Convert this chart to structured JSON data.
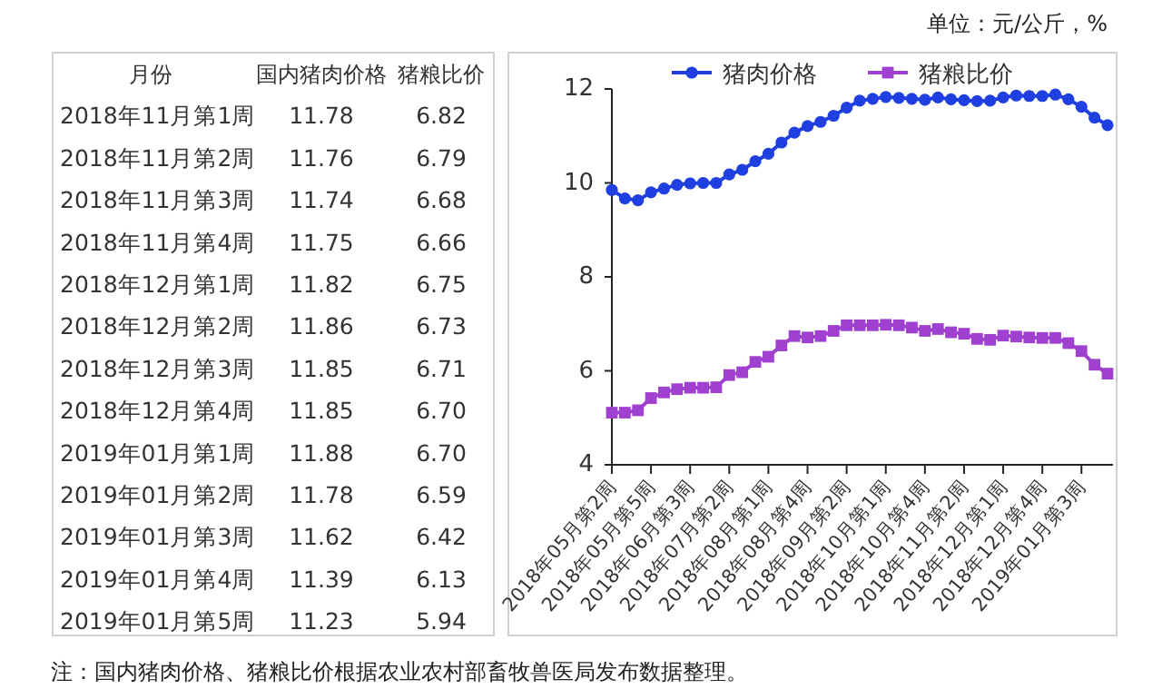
{
  "chart_data": [
    {
      "type": "other",
      "xlabel": "月份",
      "categories": [
        "2018年11月第1周",
        "2018年11月第2周",
        "2018年11月第3周",
        "2018年11月第4周",
        "2018年12月第1周",
        "2018年12月第2周",
        "2018年12月第3周",
        "2018年12月第4周",
        "2019年01月第1周",
        "2019年01月第2周",
        "2019年01月第3周",
        "2019年01月第4周",
        "2019年01月第5周"
      ],
      "series": [
        {
          "name": "国内猪肉价格",
          "values": [
            11.78,
            11.76,
            11.74,
            11.75,
            11.82,
            11.86,
            11.85,
            11.85,
            11.88,
            11.78,
            11.62,
            11.39,
            11.23
          ],
          "value_labels": [
            "11.78",
            "11.76",
            "11.74",
            "11.75",
            "11.82",
            "11.86",
            "11.85",
            "11.85",
            "11.88",
            "11.78",
            "11.62",
            "11.39",
            "11.23"
          ]
        },
        {
          "name": "猪粮比价",
          "values": [
            6.82,
            6.79,
            6.68,
            6.66,
            6.75,
            6.73,
            6.71,
            6.7,
            6.7,
            6.59,
            6.42,
            6.13,
            5.94
          ],
          "value_labels": [
            "6.82",
            "6.79",
            "6.68",
            "6.66",
            "6.75",
            "6.73",
            "6.71",
            "6.70",
            "6.70",
            "6.59",
            "6.42",
            "6.13",
            "5.94"
          ]
        }
      ],
      "annotations": [
        "注：国内猪肉价格、猪粮比价根据农业农村部畜牧兽医局发布数据整理。"
      ]
    },
    {
      "type": "line",
      "annotations": [
        "单位：元/公斤，%"
      ],
      "categories": [
        "2018年05月第2周",
        null,
        null,
        "2018年05月第5周",
        null,
        null,
        "2018年06月第3周",
        null,
        null,
        "2018年07月第2周",
        null,
        null,
        "2018年08月第1周",
        null,
        null,
        "2018年08月第4周",
        null,
        null,
        "2018年09月第2周",
        null,
        null,
        "2018年10月第1周",
        null,
        null,
        "2018年10月第4周",
        null,
        null,
        "2018年11月第2周",
        null,
        null,
        "2018年12月第1周",
        null,
        null,
        "2018年12月第4周",
        null,
        null,
        "2019年01月第3周",
        null,
        null
      ],
      "series": [
        {
          "name": "猪肉价格",
          "color": "#1f3fe0",
          "marker": "circle",
          "values": [
            9.85,
            9.67,
            9.63,
            9.8,
            9.88,
            9.96,
            9.99,
            10.0,
            10.0,
            10.18,
            10.28,
            10.46,
            10.62,
            10.86,
            11.07,
            11.21,
            11.3,
            11.43,
            11.6,
            11.75,
            11.79,
            11.83,
            11.81,
            11.79,
            11.77,
            11.82,
            11.78,
            11.76,
            11.74,
            11.75,
            11.82,
            11.86,
            11.85,
            11.85,
            11.88,
            11.78,
            11.62,
            11.39,
            11.23
          ]
        },
        {
          "name": "猪粮比价",
          "color": "#a040d0",
          "marker": "square",
          "values": [
            5.11,
            5.11,
            5.16,
            5.42,
            5.54,
            5.61,
            5.64,
            5.64,
            5.65,
            5.91,
            5.97,
            6.19,
            6.3,
            6.54,
            6.74,
            6.71,
            6.74,
            6.85,
            6.97,
            6.97,
            6.97,
            6.98,
            6.97,
            6.92,
            6.85,
            6.89,
            6.82,
            6.79,
            6.68,
            6.66,
            6.75,
            6.73,
            6.71,
            6.7,
            6.7,
            6.59,
            6.42,
            6.13,
            5.94
          ]
        }
      ],
      "ylim": [
        4,
        12
      ],
      "yticks": [
        4,
        6,
        8,
        10,
        12
      ],
      "legend": "top",
      "line_style": "solid"
    }
  ]
}
